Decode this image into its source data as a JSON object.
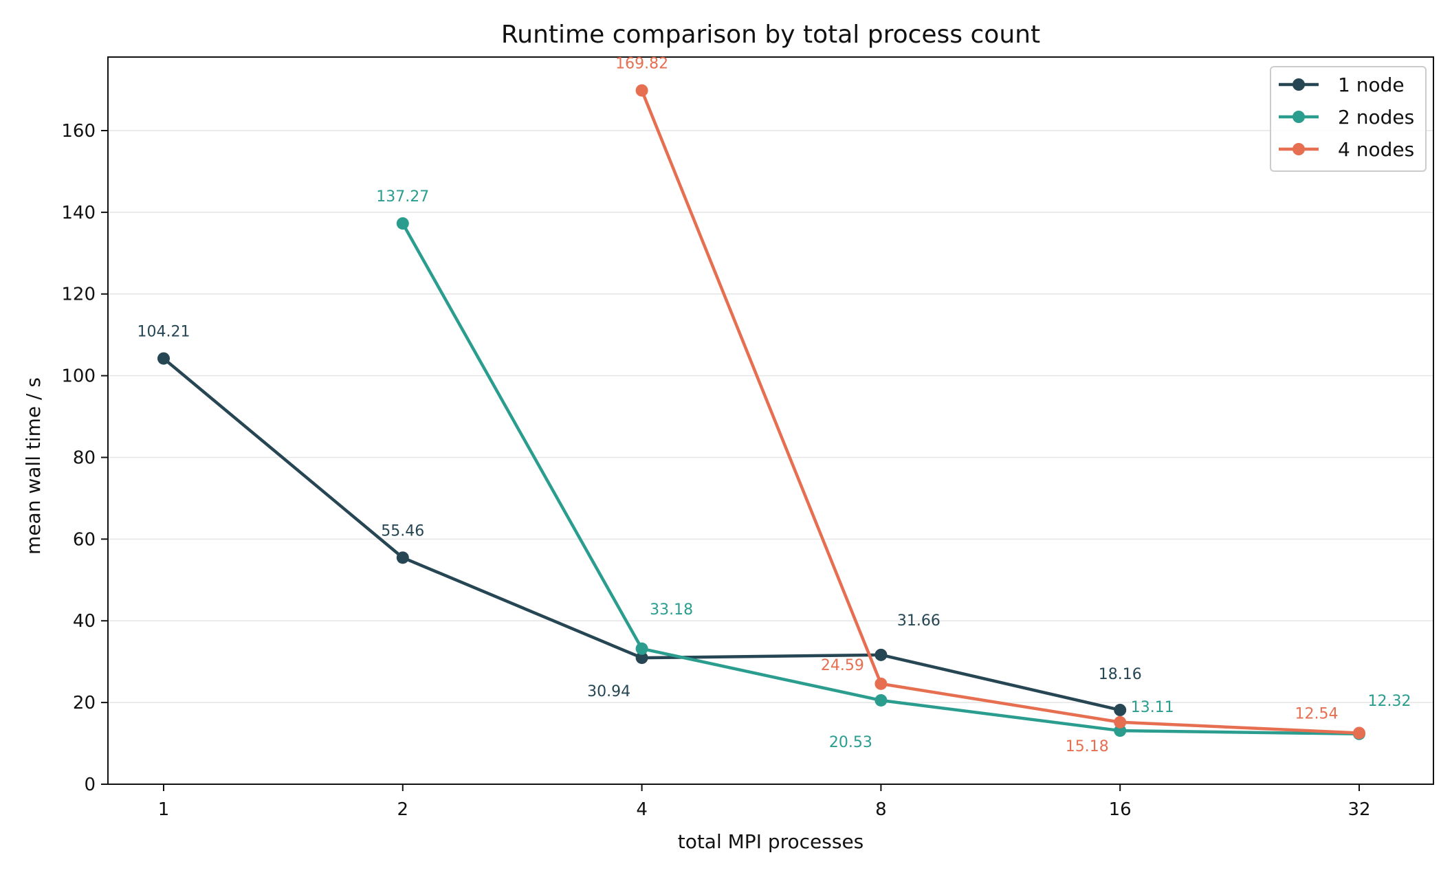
{
  "chart_data": {
    "type": "line",
    "title": "Runtime comparison by total process count",
    "xlabel": "total MPI processes",
    "ylabel": "mean wall time / s",
    "x_scale": "log2",
    "x": [
      1,
      2,
      4,
      8,
      16,
      32
    ],
    "x_tick_labels": [
      "1",
      "2",
      "4",
      "8",
      "16",
      "32"
    ],
    "ylim": [
      0,
      178
    ],
    "y_ticks": [
      0,
      20,
      40,
      60,
      80,
      100,
      120,
      140,
      160
    ],
    "grid": "horizontal",
    "legend_position": "top-right",
    "series": [
      {
        "name": "1 node",
        "color": "#264653",
        "points": [
          [
            1,
            104.21
          ],
          [
            2,
            55.46
          ],
          [
            4,
            30.94
          ],
          [
            8,
            31.66
          ],
          [
            16,
            18.16
          ]
        ],
        "labels": [
          "104.21",
          "55.46",
          "30.94",
          "31.66",
          "18.16"
        ]
      },
      {
        "name": "2 nodes",
        "color": "#2a9d8f",
        "points": [
          [
            2,
            137.27
          ],
          [
            4,
            33.18
          ],
          [
            8,
            20.53
          ],
          [
            16,
            13.11
          ],
          [
            32,
            12.32
          ]
        ],
        "labels": [
          "137.27",
          "33.18",
          "20.53",
          "13.11",
          "12.32"
        ]
      },
      {
        "name": "4 nodes",
        "color": "#e76f51",
        "points": [
          [
            4,
            169.82
          ],
          [
            8,
            24.59
          ],
          [
            16,
            15.18
          ],
          [
            32,
            12.54
          ]
        ],
        "labels": [
          "169.82",
          "24.59",
          "15.18",
          "12.54"
        ]
      }
    ]
  }
}
